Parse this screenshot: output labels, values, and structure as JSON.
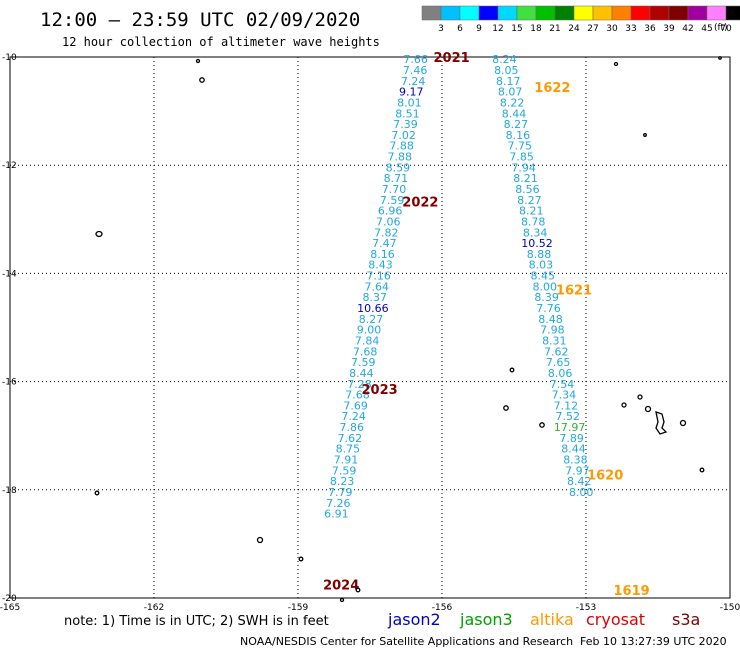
{
  "title": "12:00 – 23:59 UTC 02/09/2020",
  "subtitle": "12 hour collection of altimeter wave heights",
  "note": "note: 1) Time is in UTC; 2) SWH is in feet",
  "footer_left": "NOAA/NESDIS Center for Satellite Applications and Research",
  "footer_right": "Feb 10 13:27:39 UTC 2020",
  "colorbar": {
    "unit": "(ft)",
    "labels": [
      "3",
      "6",
      "9",
      "12",
      "15",
      "18",
      "21",
      "24",
      "27",
      "30",
      "33",
      "36",
      "39",
      "42",
      "45",
      "70"
    ],
    "colors": [
      "#808080",
      "#00c0ff",
      "#00ffff",
      "#0000ff",
      "#00d8ff",
      "#40e040",
      "#00c000",
      "#008000",
      "#ffff00",
      "#ffc000",
      "#ff8000",
      "#ff0000",
      "#b00000",
      "#800000",
      "#a000a0",
      "#ff80ff",
      "#000000"
    ]
  },
  "legend": [
    {
      "label": "jason2",
      "color": "#0000d0"
    },
    {
      "label": "jason3",
      "color": "#00a000"
    },
    {
      "label": "altika",
      "color": "#ff9900"
    },
    {
      "label": "cryosat",
      "color": "#e00000"
    },
    {
      "label": "s3a",
      "color": "#800000"
    }
  ],
  "chart_data": {
    "type": "scatter",
    "title": "12:00 – 23:59 UTC 02/09/2020",
    "xlim": [
      -165,
      -150
    ],
    "ylim": [
      -20,
      -10
    ],
    "xticks": [
      -165,
      -162,
      -159,
      -156,
      -153,
      -150
    ],
    "yticks": [
      -10,
      -12,
      -14,
      -16,
      -18,
      -20
    ],
    "xtick_labels": [
      "-165",
      "-162",
      "-159",
      "-156",
      "-153",
      "-150"
    ],
    "ytick_labels": [
      "-10",
      "-12",
      "-14",
      "-16",
      "-18",
      "-20"
    ],
    "grid": true,
    "series": [
      {
        "name": "s3a",
        "color": "#22a8e0",
        "points": [
          {
            "lon": -156.55,
            "lat": -10.04,
            "value": "7.66"
          },
          {
            "lon": -156.56,
            "lat": -10.24,
            "value": "7.46"
          },
          {
            "lon": -156.6,
            "lat": -10.44,
            "value": "7.24"
          },
          {
            "lon": -156.64,
            "lat": -10.64,
            "value": "9.17",
            "color": "#0000c0"
          },
          {
            "lon": -156.68,
            "lat": -10.84,
            "value": "8.01"
          },
          {
            "lon": -156.72,
            "lat": -11.04,
            "value": "8.51"
          },
          {
            "lon": -156.76,
            "lat": -11.24,
            "value": "7.39"
          },
          {
            "lon": -156.8,
            "lat": -11.44,
            "value": "7.02"
          },
          {
            "lon": -156.84,
            "lat": -11.64,
            "value": "7.88"
          },
          {
            "lon": -156.88,
            "lat": -11.84,
            "value": "7.88"
          },
          {
            "lon": -156.92,
            "lat": -12.04,
            "value": "8.59"
          },
          {
            "lon": -156.96,
            "lat": -12.24,
            "value": "8.71"
          },
          {
            "lon": -157.0,
            "lat": -12.44,
            "value": "7.70"
          },
          {
            "lon": -157.04,
            "lat": -12.64,
            "value": "7.59"
          },
          {
            "lon": -157.08,
            "lat": -12.84,
            "value": "6.96"
          },
          {
            "lon": -157.12,
            "lat": -13.04,
            "value": "7.06"
          },
          {
            "lon": -157.16,
            "lat": -13.24,
            "value": "7.82"
          },
          {
            "lon": -157.2,
            "lat": -13.44,
            "value": "7.47"
          },
          {
            "lon": -157.24,
            "lat": -13.64,
            "value": "8.16"
          },
          {
            "lon": -157.28,
            "lat": -13.84,
            "value": "8.43"
          },
          {
            "lon": -157.32,
            "lat": -14.04,
            "value": "7.16"
          },
          {
            "lon": -157.36,
            "lat": -14.24,
            "value": "7.64"
          },
          {
            "lon": -157.4,
            "lat": -14.44,
            "value": "8.37"
          },
          {
            "lon": -157.44,
            "lat": -14.64,
            "value": "10.66",
            "color": "#0000c0"
          },
          {
            "lon": -157.48,
            "lat": -14.84,
            "value": "8.27"
          },
          {
            "lon": -157.52,
            "lat": -15.04,
            "value": "9.00"
          },
          {
            "lon": -157.56,
            "lat": -15.24,
            "value": "7.84"
          },
          {
            "lon": -157.6,
            "lat": -15.44,
            "value": "7.68"
          },
          {
            "lon": -157.64,
            "lat": -15.64,
            "value": "7.59"
          },
          {
            "lon": -157.68,
            "lat": -15.84,
            "value": "8.44"
          },
          {
            "lon": -157.72,
            "lat": -16.04,
            "value": "7.28"
          },
          {
            "lon": -157.76,
            "lat": -16.24,
            "value": "7.68"
          },
          {
            "lon": -157.8,
            "lat": -16.44,
            "value": "7.69"
          },
          {
            "lon": -157.84,
            "lat": -16.64,
            "value": "7.24"
          },
          {
            "lon": -157.88,
            "lat": -16.84,
            "value": "7.86"
          },
          {
            "lon": -157.92,
            "lat": -17.04,
            "value": "7.62"
          },
          {
            "lon": -157.96,
            "lat": -17.24,
            "value": "8.75"
          },
          {
            "lon": -158.0,
            "lat": -17.44,
            "value": "7.91"
          },
          {
            "lon": -158.04,
            "lat": -17.64,
            "value": "7.59"
          },
          {
            "lon": -158.08,
            "lat": -17.84,
            "value": "8.23"
          },
          {
            "lon": -158.12,
            "lat": -18.04,
            "value": "7.79"
          },
          {
            "lon": -158.16,
            "lat": -18.24,
            "value": "7.26"
          },
          {
            "lon": -158.2,
            "lat": -18.44,
            "value": "6.91"
          }
        ]
      },
      {
        "name": "altika",
        "color": "#22a8e0",
        "points": [
          {
            "lon": -154.7,
            "lat": -10.04,
            "value": "8.24"
          },
          {
            "lon": -154.66,
            "lat": -10.24,
            "value": "8.05"
          },
          {
            "lon": -154.62,
            "lat": -10.44,
            "value": "8.17"
          },
          {
            "lon": -154.58,
            "lat": -10.64,
            "value": "8.07"
          },
          {
            "lon": -154.54,
            "lat": -10.84,
            "value": "8.22"
          },
          {
            "lon": -154.5,
            "lat": -11.04,
            "value": "8.44"
          },
          {
            "lon": -154.46,
            "lat": -11.24,
            "value": "8.27"
          },
          {
            "lon": -154.42,
            "lat": -11.44,
            "value": "8.16"
          },
          {
            "lon": -154.38,
            "lat": -11.64,
            "value": "7.75"
          },
          {
            "lon": -154.34,
            "lat": -11.84,
            "value": "7.85"
          },
          {
            "lon": -154.3,
            "lat": -12.04,
            "value": "7.94"
          },
          {
            "lon": -154.26,
            "lat": -12.24,
            "value": "8.21"
          },
          {
            "lon": -154.22,
            "lat": -12.44,
            "value": "8.56"
          },
          {
            "lon": -154.18,
            "lat": -12.64,
            "value": "8.27"
          },
          {
            "lon": -154.14,
            "lat": -12.84,
            "value": "8.21"
          },
          {
            "lon": -154.1,
            "lat": -13.04,
            "value": "8.78"
          },
          {
            "lon": -154.06,
            "lat": -13.24,
            "value": "8.34"
          },
          {
            "lon": -154.02,
            "lat": -13.44,
            "value": "10.52",
            "color": "#0000c0"
          },
          {
            "lon": -153.98,
            "lat": -13.64,
            "value": "8.88"
          },
          {
            "lon": -153.94,
            "lat": -13.84,
            "value": "8.03"
          },
          {
            "lon": -153.9,
            "lat": -14.04,
            "value": "8.45"
          },
          {
            "lon": -153.86,
            "lat": -14.24,
            "value": "8.00"
          },
          {
            "lon": -153.82,
            "lat": -14.44,
            "value": "8.39"
          },
          {
            "lon": -153.78,
            "lat": -14.64,
            "value": "7.76"
          },
          {
            "lon": -153.74,
            "lat": -14.84,
            "value": "8.48"
          },
          {
            "lon": -153.7,
            "lat": -15.04,
            "value": "7.98"
          },
          {
            "lon": -153.66,
            "lat": -15.24,
            "value": "8.31"
          },
          {
            "lon": -153.62,
            "lat": -15.44,
            "value": "7.62"
          },
          {
            "lon": -153.58,
            "lat": -15.64,
            "value": "7.65"
          },
          {
            "lon": -153.54,
            "lat": -15.84,
            "value": "8.06"
          },
          {
            "lon": -153.5,
            "lat": -16.04,
            "value": "7.54"
          },
          {
            "lon": -153.46,
            "lat": -16.24,
            "value": "7.34"
          },
          {
            "lon": -153.42,
            "lat": -16.44,
            "value": "7.12"
          },
          {
            "lon": -153.38,
            "lat": -16.64,
            "value": "7.52"
          },
          {
            "lon": -153.34,
            "lat": -16.84,
            "value": "17.97",
            "color": "#30b030"
          },
          {
            "lon": -153.3,
            "lat": -17.04,
            "value": "7.89"
          },
          {
            "lon": -153.26,
            "lat": -17.24,
            "value": "8.44"
          },
          {
            "lon": -153.22,
            "lat": -17.44,
            "value": "8.38"
          },
          {
            "lon": -153.18,
            "lat": -17.64,
            "value": "7.97"
          },
          {
            "lon": -153.14,
            "lat": -17.84,
            "value": "8.42"
          },
          {
            "lon": -153.1,
            "lat": -18.04,
            "value": "8.00"
          }
        ]
      }
    ],
    "time_labels": [
      {
        "text": "2021",
        "lon": -155.8,
        "lat": -10.0,
        "color": "#800000"
      },
      {
        "text": "2022",
        "lon": -156.45,
        "lat": -12.67,
        "color": "#800000"
      },
      {
        "text": "2023",
        "lon": -157.3,
        "lat": -16.14,
        "color": "#800000"
      },
      {
        "text": "2024",
        "lon": -158.1,
        "lat": -19.75,
        "color": "#800000"
      },
      {
        "text": "1622",
        "lon": -153.7,
        "lat": -10.55,
        "color": "#ff9900"
      },
      {
        "text": "1621",
        "lon": -153.25,
        "lat": -14.3,
        "color": "#ff9900"
      },
      {
        "text": "1620",
        "lon": -152.6,
        "lat": -17.72,
        "color": "#ff9900"
      },
      {
        "text": "1619",
        "lon": -152.05,
        "lat": -19.85,
        "color": "#ff9900"
      }
    ]
  }
}
